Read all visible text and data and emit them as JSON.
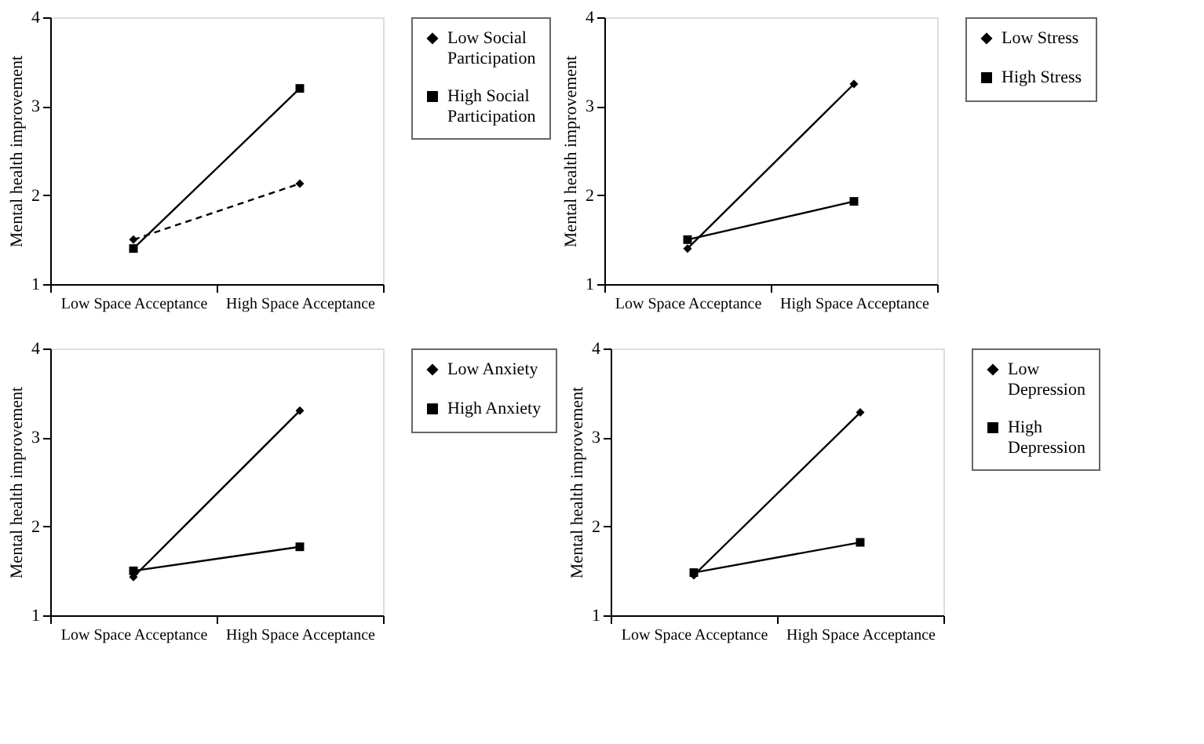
{
  "chart_data": [
    {
      "type": "line",
      "categories": [
        "Low Space Acceptance",
        "High Space Acceptance"
      ],
      "ylabel": "Mental health improvement",
      "ylim": [
        1,
        4
      ],
      "yticks": [
        1,
        2,
        3,
        4
      ],
      "grid": false,
      "legend": "right",
      "series": [
        {
          "name": "Low Social Participation",
          "color": "#000000",
          "values": [
            1.5,
            2.13
          ],
          "marker": "diamond",
          "line_style": "dashed"
        },
        {
          "name": "High Social Participation",
          "color": "#000000",
          "values": [
            1.4,
            3.2
          ],
          "marker": "square",
          "line_style": "solid"
        }
      ]
    },
    {
      "type": "line",
      "categories": [
        "Low Space Acceptance",
        "High Space Acceptance"
      ],
      "ylabel": "Mental health improvement",
      "ylim": [
        1,
        4
      ],
      "yticks": [
        1,
        2,
        3,
        4
      ],
      "grid": false,
      "legend": "right",
      "series": [
        {
          "name": "Low Stress",
          "color": "#000000",
          "values": [
            1.4,
            3.25
          ],
          "marker": "diamond",
          "line_style": "solid"
        },
        {
          "name": "High Stress",
          "color": "#000000",
          "values": [
            1.5,
            1.93
          ],
          "marker": "square",
          "line_style": "solid"
        }
      ]
    },
    {
      "type": "line",
      "categories": [
        "Low Space Acceptance",
        "High Space Acceptance"
      ],
      "ylabel": "Mental health improvement",
      "ylim": [
        1,
        4
      ],
      "yticks": [
        1,
        2,
        3,
        4
      ],
      "grid": false,
      "legend": "right",
      "series": [
        {
          "name": "Low Anxiety",
          "color": "#000000",
          "values": [
            1.43,
            3.3
          ],
          "marker": "diamond",
          "line_style": "solid"
        },
        {
          "name": "High Anxiety",
          "color": "#000000",
          "values": [
            1.5,
            1.77
          ],
          "marker": "square",
          "line_style": "solid"
        }
      ]
    },
    {
      "type": "line",
      "categories": [
        "Low Space Acceptance",
        "High Space Acceptance"
      ],
      "ylabel": "Mental health improvement",
      "ylim": [
        1,
        4
      ],
      "yticks": [
        1,
        2,
        3,
        4
      ],
      "grid": false,
      "legend": "right",
      "series": [
        {
          "name": "Low Depression",
          "color": "#000000",
          "values": [
            1.45,
            3.28
          ],
          "marker": "diamond",
          "line_style": "solid"
        },
        {
          "name": "High Depression",
          "color": "#000000",
          "values": [
            1.48,
            1.82
          ],
          "marker": "square",
          "line_style": "solid"
        }
      ]
    }
  ]
}
